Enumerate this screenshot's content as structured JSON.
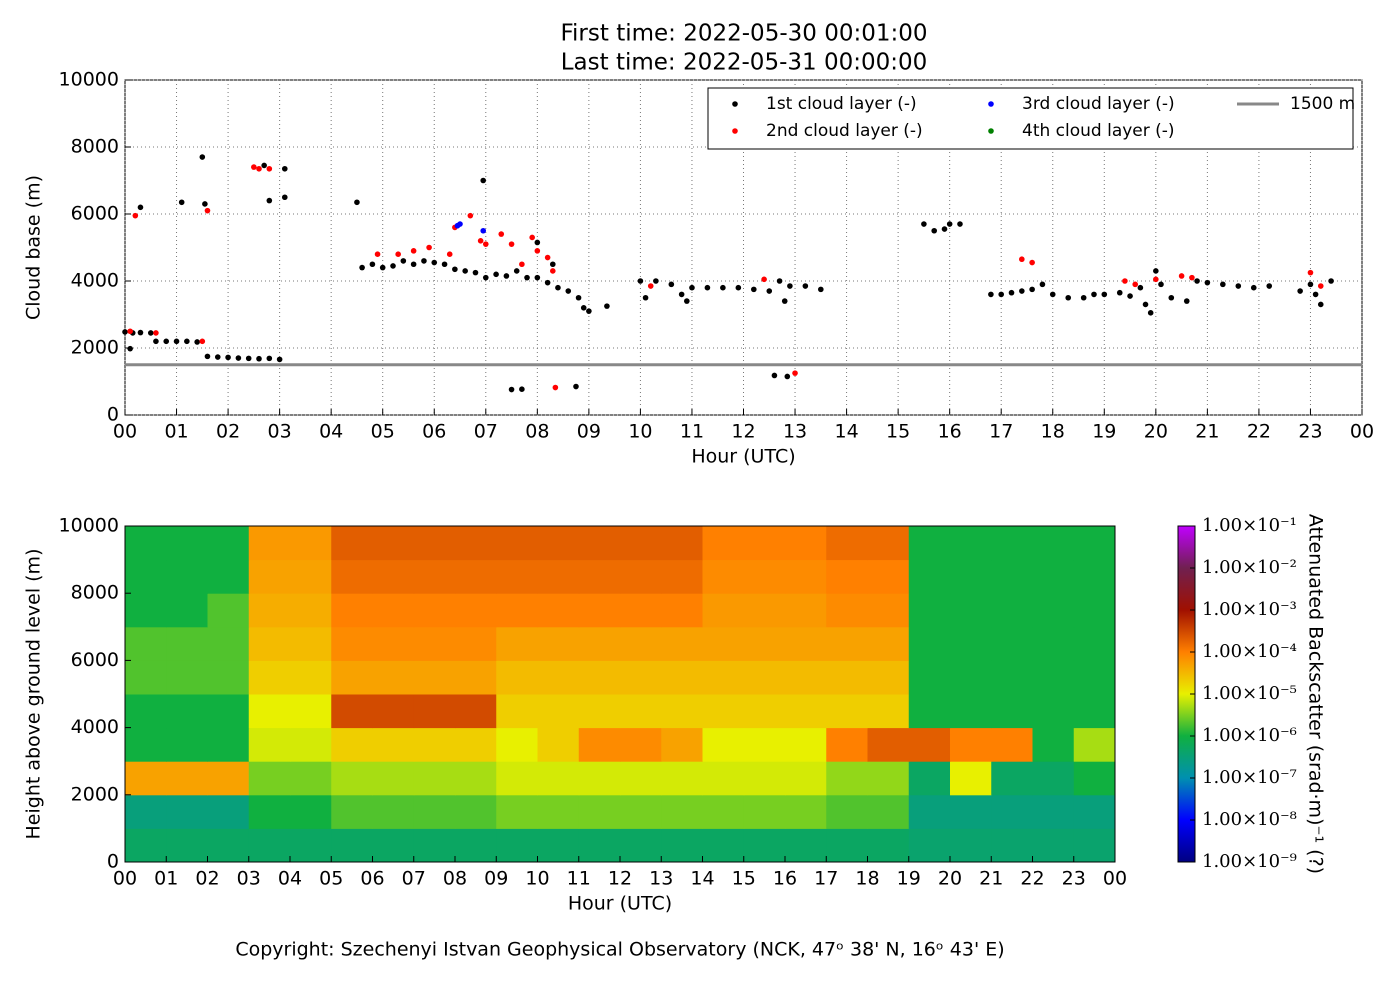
{
  "chart_data": [
    {
      "type": "scatter",
      "title_lines": [
        "First time: 2022-05-30 00:01:00",
        "Last time: 2022-05-31 00:00:00"
      ],
      "x_label": "Hour (UTC)",
      "y_label": "Cloud base (m)",
      "xlim": [
        0,
        24
      ],
      "ylim": [
        0,
        10000
      ],
      "xticks": [
        {
          "value": 0,
          "label": "00"
        },
        {
          "value": 1,
          "label": "01"
        },
        {
          "value": 2,
          "label": "02"
        },
        {
          "value": 3,
          "label": "03"
        },
        {
          "value": 4,
          "label": "04"
        },
        {
          "value": 5,
          "label": "05"
        },
        {
          "value": 6,
          "label": "06"
        },
        {
          "value": 7,
          "label": "07"
        },
        {
          "value": 8,
          "label": "08"
        },
        {
          "value": 9,
          "label": "09"
        },
        {
          "value": 10,
          "label": "10"
        },
        {
          "value": 11,
          "label": "11"
        },
        {
          "value": 12,
          "label": "12"
        },
        {
          "value": 13,
          "label": "13"
        },
        {
          "value": 14,
          "label": "14"
        },
        {
          "value": 15,
          "label": "15"
        },
        {
          "value": 16,
          "label": "16"
        },
        {
          "value": 17,
          "label": "17"
        },
        {
          "value": 18,
          "label": "18"
        },
        {
          "value": 19,
          "label": "19"
        },
        {
          "value": 20,
          "label": "20"
        },
        {
          "value": 21,
          "label": "21"
        },
        {
          "value": 22,
          "label": "22"
        },
        {
          "value": 23,
          "label": "23"
        },
        {
          "value": 24,
          "label": "00"
        }
      ],
      "yticks": [
        0,
        2000,
        4000,
        6000,
        8000,
        10000
      ],
      "grid": true,
      "legend": "upper right",
      "series": [
        {
          "name": "1st cloud layer (-)",
          "color": "#000000",
          "x": [
            0.0,
            0.1,
            0.15,
            0.3,
            0.3,
            0.5,
            0.6,
            0.8,
            1.0,
            1.1,
            1.2,
            1.4,
            1.5,
            1.55,
            1.6,
            1.8,
            2.0,
            2.2,
            2.4,
            2.6,
            2.8,
            2.7,
            2.8,
            3.0,
            3.1,
            3.1,
            4.5,
            4.6,
            4.8,
            5.0,
            5.2,
            5.4,
            5.6,
            5.8,
            6.0,
            6.2,
            6.4,
            6.6,
            6.8,
            6.95,
            7.0,
            7.2,
            7.4,
            7.6,
            7.5,
            7.7,
            7.8,
            8.0,
            8.0,
            8.2,
            8.3,
            8.4,
            8.6,
            8.8,
            8.9,
            9.0,
            9.35,
            8.75,
            10.0,
            10.1,
            10.3,
            10.6,
            10.8,
            10.9,
            11.0,
            11.3,
            11.6,
            11.9,
            12.2,
            12.5,
            12.6,
            12.7,
            12.8,
            12.85,
            12.9,
            13.2,
            13.5,
            15.5,
            15.7,
            15.9,
            16.0,
            16.2,
            16.8,
            17.0,
            17.2,
            17.4,
            17.6,
            17.8,
            18.0,
            18.3,
            18.6,
            18.8,
            19.0,
            19.3,
            19.5,
            19.7,
            19.8,
            19.9,
            20.0,
            20.1,
            20.3,
            20.6,
            20.8,
            21.0,
            21.3,
            21.6,
            21.9,
            22.2,
            22.8,
            23.0,
            23.1,
            23.2,
            23.4
          ],
          "values": [
            2480,
            1980,
            2450,
            6200,
            2460,
            2450,
            2200,
            2200,
            2200,
            6350,
            2200,
            2180,
            7700,
            6300,
            1750,
            1730,
            1720,
            1700,
            1690,
            1680,
            6400,
            7450,
            1690,
            1660,
            7350,
            6500,
            6350,
            4400,
            4500,
            4400,
            4450,
            4600,
            4500,
            4600,
            4550,
            4500,
            4350,
            4300,
            4250,
            7000,
            4100,
            4200,
            4150,
            4300,
            760,
            770,
            4100,
            4100,
            5150,
            3950,
            4500,
            3800,
            3700,
            3500,
            3200,
            3100,
            3250,
            850,
            4000,
            3500,
            4000,
            3900,
            3600,
            3400,
            3800,
            3800,
            3800,
            3800,
            3750,
            3700,
            1180,
            4000,
            3400,
            1150,
            3850,
            3850,
            3750,
            5700,
            5500,
            5550,
            5700,
            5700,
            3600,
            3600,
            3650,
            3700,
            3750,
            3900,
            3600,
            3500,
            3500,
            3600,
            3600,
            3650,
            3550,
            3800,
            3300,
            3050,
            4300,
            3900,
            3500,
            3400,
            4000,
            3950,
            3900,
            3850,
            3800,
            3850,
            3700,
            3900,
            3600,
            3300,
            4000
          ]
        },
        {
          "name": "2nd cloud layer (-)",
          "color": "#ff0000",
          "x": [
            0.2,
            0.1,
            0.6,
            1.5,
            1.6,
            2.5,
            2.8,
            2.6,
            4.9,
            5.3,
            5.6,
            5.9,
            6.3,
            6.4,
            6.7,
            6.9,
            7.0,
            7.3,
            7.5,
            7.7,
            7.9,
            8.0,
            8.2,
            8.3,
            8.35,
            10.2,
            12.4,
            13.0,
            17.4,
            17.6,
            19.4,
            19.6,
            20.0,
            20.5,
            20.7,
            23.0,
            23.2
          ],
          "values": [
            5950,
            2500,
            2450,
            2200,
            6100,
            7400,
            7350,
            7350,
            4800,
            4800,
            4900,
            5000,
            4800,
            5600,
            5950,
            5200,
            5100,
            5400,
            5100,
            4500,
            5300,
            4900,
            4700,
            4300,
            820,
            3850,
            4050,
            1250,
            4650,
            4550,
            4000,
            3900,
            4050,
            4150,
            4100,
            4250,
            3850
          ]
        },
        {
          "name": "3rd cloud layer (-)",
          "color": "#0000ff",
          "x": [
            6.45,
            6.5,
            6.95
          ],
          "values": [
            5650,
            5700,
            5500
          ]
        },
        {
          "name": "4th cloud layer (-)",
          "color": "#008000",
          "x": [],
          "values": []
        }
      ],
      "reference_line": {
        "value": 1500,
        "label": "1500 m",
        "color": "#888888"
      }
    },
    {
      "type": "heatmap",
      "x_label": "Hour (UTC)",
      "y_label": "Height above ground level (m)",
      "xlim": [
        0,
        24
      ],
      "ylim": [
        0,
        10000
      ],
      "xticks": [
        {
          "value": 0,
          "label": "00"
        },
        {
          "value": 1,
          "label": "01"
        },
        {
          "value": 2,
          "label": "02"
        },
        {
          "value": 3,
          "label": "03"
        },
        {
          "value": 4,
          "label": "04"
        },
        {
          "value": 5,
          "label": "05"
        },
        {
          "value": 6,
          "label": "06"
        },
        {
          "value": 7,
          "label": "07"
        },
        {
          "value": 8,
          "label": "08"
        },
        {
          "value": 9,
          "label": "09"
        },
        {
          "value": 10,
          "label": "10"
        },
        {
          "value": 11,
          "label": "11"
        },
        {
          "value": 12,
          "label": "12"
        },
        {
          "value": 13,
          "label": "13"
        },
        {
          "value": 14,
          "label": "14"
        },
        {
          "value": 15,
          "label": "15"
        },
        {
          "value": 16,
          "label": "16"
        },
        {
          "value": 17,
          "label": "17"
        },
        {
          "value": 18,
          "label": "18"
        },
        {
          "value": 19,
          "label": "19"
        },
        {
          "value": 20,
          "label": "20"
        },
        {
          "value": 21,
          "label": "21"
        },
        {
          "value": 22,
          "label": "22"
        },
        {
          "value": 23,
          "label": "23"
        },
        {
          "value": 24,
          "label": "00"
        }
      ],
      "yticks": [
        0,
        2000,
        4000,
        6000,
        8000,
        10000
      ],
      "x_bins": [
        0,
        1,
        2,
        3,
        4,
        5,
        6,
        7,
        8,
        9,
        10,
        11,
        12,
        13,
        14,
        15,
        16,
        17,
        18,
        19,
        20,
        21,
        22,
        23,
        24
      ],
      "y_bins": [
        0,
        1000,
        2000,
        3000,
        4000,
        5000,
        6000,
        7000,
        8000,
        9000,
        10000
      ],
      "z": [
        [
          5e-07,
          5e-07,
          5e-07,
          5e-07,
          5e-07,
          5e-07,
          5e-07,
          5e-07,
          5e-07,
          5e-07,
          5e-07,
          5e-07,
          5e-07,
          5e-07,
          5e-07,
          5e-07,
          5e-07,
          5e-07,
          5e-07,
          4e-07,
          4e-07,
          4e-07,
          4e-07,
          4e-07
        ],
        [
          3e-07,
          3e-07,
          3e-07,
          1e-06,
          1e-06,
          2e-06,
          2e-06,
          2e-06,
          2e-06,
          3e-06,
          3e-06,
          3e-06,
          3e-06,
          3e-06,
          3e-06,
          3e-06,
          3e-06,
          2e-06,
          2e-06,
          3e-07,
          3e-07,
          3e-07,
          3e-07,
          3e-07
        ],
        [
          5e-05,
          5e-05,
          5e-05,
          3e-06,
          3e-06,
          5e-06,
          5e-06,
          5e-06,
          5e-06,
          8e-06,
          8e-06,
          8e-06,
          8e-06,
          8e-06,
          8e-06,
          8e-06,
          8e-06,
          4e-06,
          4e-06,
          5e-07,
          1e-05,
          5e-07,
          5e-07,
          1e-06
        ],
        [
          1e-06,
          1e-06,
          1e-06,
          8e-06,
          8e-06,
          2e-05,
          2e-05,
          2e-05,
          2e-05,
          1e-05,
          2e-05,
          8e-05,
          8e-05,
          5e-05,
          1e-05,
          1e-05,
          1e-05,
          0.0001,
          0.0002,
          0.0002,
          0.0001,
          0.0001,
          1e-06,
          5e-06
        ],
        [
          1e-06,
          1e-06,
          1e-06,
          1e-05,
          1e-05,
          0.0003,
          0.0003,
          0.0003,
          0.0003,
          2e-05,
          2e-05,
          2e-05,
          2e-05,
          2e-05,
          2e-05,
          2e-05,
          2e-05,
          2e-05,
          2e-05,
          1e-06,
          1e-06,
          1e-06,
          1e-06,
          1e-06
        ],
        [
          2e-06,
          2e-06,
          2e-06,
          2e-05,
          2e-05,
          5e-05,
          5e-05,
          5e-05,
          5e-05,
          3e-05,
          3e-05,
          3e-05,
          3e-05,
          3e-05,
          3e-05,
          3e-05,
          3e-05,
          3e-05,
          3e-05,
          1e-06,
          1e-06,
          1e-06,
          1e-06,
          1e-06
        ],
        [
          2e-06,
          2e-06,
          2e-06,
          3e-05,
          3e-05,
          8e-05,
          8e-05,
          8e-05,
          8e-05,
          5e-05,
          5e-05,
          5e-05,
          5e-05,
          5e-05,
          5e-05,
          5e-05,
          5e-05,
          5e-05,
          5e-05,
          1e-06,
          1e-06,
          1e-06,
          1e-06,
          1e-06
        ],
        [
          1e-06,
          1e-06,
          2e-06,
          4e-05,
          4e-05,
          0.0001,
          0.0001,
          0.0001,
          0.0001,
          0.0001,
          0.0001,
          0.0001,
          0.0001,
          0.0001,
          6e-05,
          6e-05,
          6e-05,
          8e-05,
          8e-05,
          1e-06,
          1e-06,
          1e-06,
          1e-06,
          1e-06
        ],
        [
          1e-06,
          1e-06,
          1e-06,
          5e-05,
          5e-05,
          0.00015,
          0.00015,
          0.00015,
          0.00015,
          0.00015,
          0.00015,
          0.00015,
          0.00015,
          0.00015,
          8e-05,
          8e-05,
          8e-05,
          0.0001,
          0.0001,
          1e-06,
          1e-06,
          1e-06,
          1e-06,
          1e-06
        ],
        [
          1e-06,
          1e-06,
          1e-06,
          6e-05,
          6e-05,
          0.0002,
          0.0002,
          0.0002,
          0.0002,
          0.0002,
          0.0002,
          0.0002,
          0.0002,
          0.0002,
          0.0001,
          0.0001,
          0.0001,
          0.00015,
          0.00015,
          1e-06,
          1e-06,
          1e-06,
          1e-06,
          1e-06
        ]
      ],
      "colorbar": {
        "label": "Attenuated Backscatter (srad·m)⁻¹ (?)",
        "range": [
          1e-09,
          0.1
        ],
        "log": true,
        "colormap": [
          "#000080",
          "#0000ff",
          "#0090b0",
          "#10b040",
          "#e8f000",
          "#ff8000",
          "#a01000",
          "#702050",
          "#c000ff"
        ],
        "ticks": [
          {
            "value": 1e-09,
            "label": "1.00×10⁻⁹"
          },
          {
            "value": 1e-08,
            "label": "1.00×10⁻⁸"
          },
          {
            "value": 1e-07,
            "label": "1.00×10⁻⁷"
          },
          {
            "value": 1e-06,
            "label": "1.00×10⁻⁶"
          },
          {
            "value": 1e-05,
            "label": "1.00×10⁻⁵"
          },
          {
            "value": 0.0001,
            "label": "1.00×10⁻⁴"
          },
          {
            "value": 0.001,
            "label": "1.00×10⁻³"
          },
          {
            "value": 0.01,
            "label": "1.00×10⁻²"
          },
          {
            "value": 0.1,
            "label": "1.00×10⁻¹"
          }
        ]
      }
    }
  ],
  "footer": "Copyright: Szechenyi Istvan Geophysical Observatory (NCK, 47ᵒ 38' N, 16ᵒ 43' E)"
}
